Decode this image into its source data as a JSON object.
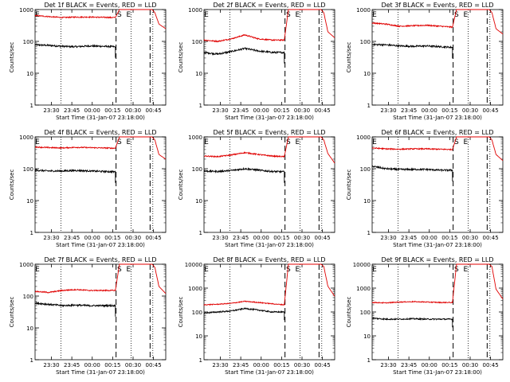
{
  "window": {
    "title": ""
  },
  "legend_text": "BLACK = Events, RED = LLD",
  "shared": {
    "xlabel": "Start Time (31-Jan-07 23:18:00)",
    "ylabel": "Counts/sec",
    "xticks": [
      "23:30",
      "23:45",
      "00:00",
      "00:15",
      "00:30",
      "00:45"
    ],
    "xtick_minutes": [
      12,
      27,
      42,
      57,
      72,
      87
    ],
    "x_range_minutes": [
      0,
      96
    ],
    "time_note": "minutes after 23:18:00",
    "markers": {
      "S": 62,
      "E": 68.7
    },
    "vlines_dashed": [
      59.5,
      84.5
    ],
    "vlines_dotted": [
      19,
      70.5,
      86.5
    ],
    "colors": {
      "events": "#000000",
      "lld": "#e00000"
    }
  },
  "chart_data": [
    {
      "type": "line",
      "title": "Det 1f BLACK = Events, RED = LLD",
      "yscale": "log",
      "ylim": [
        1,
        1000
      ],
      "yticks": [
        "1",
        "10",
        "100",
        "1000"
      ],
      "xlabel": "Start Time (31-Jan-07 23:18:00)",
      "ylabel": "Counts/sec",
      "series": [
        {
          "name": "Events",
          "color": "#000000",
          "x": [
            0,
            10,
            20,
            30,
            40,
            50,
            59
          ],
          "y": [
            78,
            75,
            70,
            68,
            72,
            70,
            68
          ]
        },
        {
          "name": "LLD",
          "color": "#e00000",
          "x": [
            0,
            10,
            20,
            30,
            40,
            50,
            59,
            62,
            66,
            80,
            86,
            88,
            91,
            96
          ],
          "y": [
            650,
            600,
            560,
            580,
            580,
            570,
            560,
            1000,
            1000,
            1000,
            1000,
            800,
            350,
            250
          ]
        }
      ]
    },
    {
      "type": "line",
      "title": "Det 2f BLACK = Events, RED = LLD",
      "yscale": "log",
      "ylim": [
        1,
        1000
      ],
      "yticks": [
        "1",
        "10",
        "100",
        "1000"
      ],
      "xlabel": "Start Time (31-Jan-07 23:18:00)",
      "ylabel": "Counts/sec",
      "series": [
        {
          "name": "Events",
          "color": "#000000",
          "x": [
            0,
            10,
            20,
            30,
            40,
            50,
            59
          ],
          "y": [
            45,
            40,
            48,
            60,
            50,
            45,
            45
          ]
        },
        {
          "name": "LLD",
          "color": "#e00000",
          "x": [
            0,
            10,
            20,
            30,
            40,
            50,
            59,
            62,
            66,
            80,
            86,
            88,
            91,
            96
          ],
          "y": [
            110,
            100,
            120,
            160,
            120,
            110,
            110,
            1000,
            1000,
            1000,
            1000,
            800,
            200,
            130
          ]
        }
      ]
    },
    {
      "type": "line",
      "title": "Det 3f BLACK = Events, RED = LLD",
      "yscale": "log",
      "ylim": [
        1,
        1000
      ],
      "yticks": [
        "1",
        "10",
        "100",
        "1000"
      ],
      "xlabel": "Start Time (31-Jan-07 23:18:00)",
      "ylabel": "Counts/sec",
      "series": [
        {
          "name": "Events",
          "color": "#000000",
          "x": [
            0,
            10,
            20,
            30,
            40,
            50,
            59
          ],
          "y": [
            80,
            78,
            72,
            70,
            72,
            68,
            65
          ]
        },
        {
          "name": "LLD",
          "color": "#e00000",
          "x": [
            0,
            10,
            20,
            30,
            40,
            50,
            59,
            62,
            66,
            80,
            86,
            88,
            91,
            96
          ],
          "y": [
            380,
            350,
            300,
            310,
            320,
            300,
            280,
            1000,
            1000,
            1000,
            1000,
            800,
            250,
            170
          ]
        }
      ]
    },
    {
      "type": "line",
      "title": "Det 4f BLACK = Events, RED = LLD",
      "yscale": "log",
      "ylim": [
        1,
        1000
      ],
      "yticks": [
        "1",
        "10",
        "100",
        "1000"
      ],
      "xlabel": "Start Time (31-Jan-07 23:18:00)",
      "ylabel": "Counts/sec",
      "series": [
        {
          "name": "Events",
          "color": "#000000",
          "x": [
            0,
            10,
            20,
            30,
            40,
            50,
            59
          ],
          "y": [
            90,
            85,
            85,
            88,
            85,
            82,
            80
          ]
        },
        {
          "name": "LLD",
          "color": "#e00000",
          "x": [
            0,
            10,
            20,
            30,
            40,
            50,
            59,
            62,
            66,
            80,
            86,
            88,
            91,
            96
          ],
          "y": [
            480,
            460,
            450,
            470,
            460,
            450,
            440,
            1000,
            1000,
            1000,
            1000,
            800,
            280,
            200
          ]
        }
      ]
    },
    {
      "type": "line",
      "title": "Det 5f BLACK = Events, RED = LLD",
      "yscale": "log",
      "ylim": [
        1,
        1000
      ],
      "yticks": [
        "1",
        "10",
        "100",
        "1000"
      ],
      "xlabel": "Start Time (31-Jan-07 23:18:00)",
      "ylabel": "Counts/sec",
      "series": [
        {
          "name": "Events",
          "color": "#000000",
          "x": [
            0,
            10,
            20,
            30,
            40,
            50,
            59
          ],
          "y": [
            85,
            82,
            88,
            100,
            90,
            82,
            80
          ]
        },
        {
          "name": "LLD",
          "color": "#e00000",
          "x": [
            0,
            10,
            20,
            30,
            40,
            50,
            59,
            62,
            66,
            80,
            86,
            88,
            91,
            96
          ],
          "y": [
            250,
            240,
            270,
            320,
            280,
            250,
            240,
            1000,
            1000,
            1000,
            1000,
            800,
            300,
            150
          ]
        }
      ]
    },
    {
      "type": "line",
      "title": "Det 6f BLACK = Events, RED = LLD",
      "yscale": "log",
      "ylim": [
        1,
        1000
      ],
      "yticks": [
        "1",
        "10",
        "100",
        "1000"
      ],
      "xlabel": "Start Time (31-Jan-07 23:18:00)",
      "ylabel": "Counts/sec",
      "series": [
        {
          "name": "Events",
          "color": "#000000",
          "x": [
            0,
            10,
            20,
            30,
            40,
            50,
            59
          ],
          "y": [
            120,
            100,
            95,
            95,
            95,
            90,
            90
          ]
        },
        {
          "name": "LLD",
          "color": "#e00000",
          "x": [
            0,
            10,
            20,
            30,
            40,
            50,
            59,
            62,
            66,
            80,
            86,
            88,
            91,
            96
          ],
          "y": [
            450,
            420,
            410,
            420,
            420,
            410,
            400,
            1000,
            1000,
            1000,
            1000,
            800,
            280,
            180
          ]
        }
      ]
    },
    {
      "type": "line",
      "title": "Det 7f BLACK = Events, RED = LLD",
      "yscale": "log",
      "ylim": [
        1,
        1000
      ],
      "yticks": [
        "1",
        "10",
        "100",
        "1000"
      ],
      "xlabel": "Start Time (31-Jan-07 23:18:00)",
      "ylabel": "Counts/sec",
      "series": [
        {
          "name": "Events",
          "color": "#000000",
          "x": [
            0,
            10,
            20,
            30,
            40,
            50,
            59
          ],
          "y": [
            60,
            55,
            50,
            52,
            50,
            50,
            50
          ]
        },
        {
          "name": "LLD",
          "color": "#e00000",
          "x": [
            0,
            10,
            20,
            30,
            40,
            50,
            59,
            62,
            66,
            80,
            86,
            88,
            91,
            96
          ],
          "y": [
            140,
            130,
            150,
            160,
            150,
            150,
            150,
            1000,
            1000,
            1000,
            1000,
            800,
            200,
            120
          ]
        }
      ]
    },
    {
      "type": "line",
      "title": "Det 8f BLACK = Events, RED = LLD",
      "yscale": "log",
      "ylim": [
        1,
        10000
      ],
      "yticks": [
        "1",
        "10",
        "100",
        "1000",
        "10000"
      ],
      "xlabel": "Start Time (31-Jan-07 23:18:00)",
      "ylabel": "Counts/sec",
      "series": [
        {
          "name": "Events",
          "color": "#000000",
          "x": [
            0,
            10,
            20,
            30,
            40,
            50,
            59
          ],
          "y": [
            90,
            100,
            110,
            140,
            120,
            100,
            100
          ]
        },
        {
          "name": "LLD",
          "color": "#e00000",
          "x": [
            0,
            10,
            20,
            30,
            40,
            50,
            59,
            62,
            66,
            80,
            86,
            88,
            91,
            96
          ],
          "y": [
            200,
            210,
            230,
            280,
            250,
            220,
            200,
            10000,
            10000,
            10000,
            10000,
            8000,
            1200,
            450
          ]
        }
      ]
    },
    {
      "type": "line",
      "title": "Det 9f BLACK = Events, RED = LLD",
      "yscale": "log",
      "ylim": [
        1,
        10000
      ],
      "yticks": [
        "1",
        "10",
        "100",
        "1000",
        "10000"
      ],
      "xlabel": "Start Time (31-Jan-07 23:18:00)",
      "ylabel": "Counts/sec",
      "series": [
        {
          "name": "Events",
          "color": "#000000",
          "x": [
            0,
            10,
            20,
            30,
            40,
            50,
            59
          ],
          "y": [
            55,
            50,
            50,
            52,
            50,
            50,
            50
          ]
        },
        {
          "name": "LLD",
          "color": "#e00000",
          "x": [
            0,
            10,
            20,
            30,
            40,
            50,
            59,
            62,
            66,
            80,
            86,
            88,
            91,
            96
          ],
          "y": [
            250,
            240,
            260,
            270,
            260,
            250,
            250,
            10000,
            10000,
            10000,
            10000,
            8000,
            900,
            350
          ]
        }
      ]
    }
  ]
}
